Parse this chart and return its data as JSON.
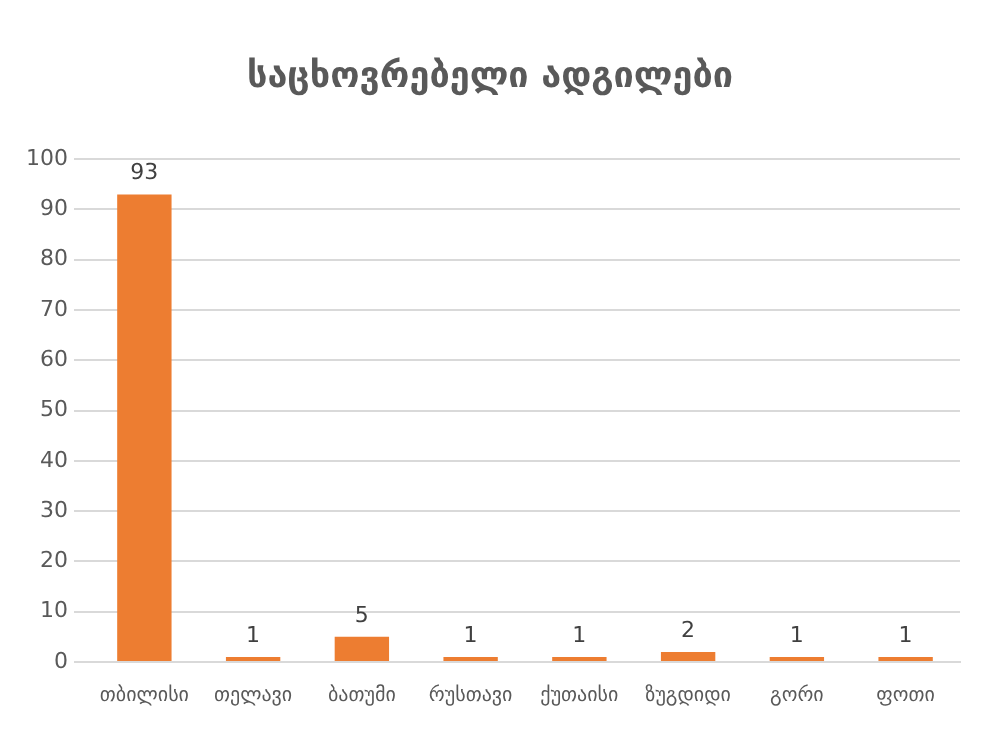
{
  "chart_data": {
    "type": "bar",
    "title": "საცხოვრებელი ადგილები",
    "categories": [
      "თბილისი",
      "თელავი",
      "ბათუმი",
      "რუსთავი",
      "ქუთაისი",
      "ზუგდიდი",
      "გორი",
      "ფოთი"
    ],
    "values": [
      93,
      1,
      5,
      1,
      1,
      2,
      1,
      1
    ],
    "color": "#ed7d31",
    "ylim": [
      0,
      100
    ],
    "yticks": [
      0,
      10,
      20,
      30,
      40,
      50,
      60,
      70,
      80,
      90,
      100
    ],
    "grid": "y",
    "data_labels": true
  }
}
